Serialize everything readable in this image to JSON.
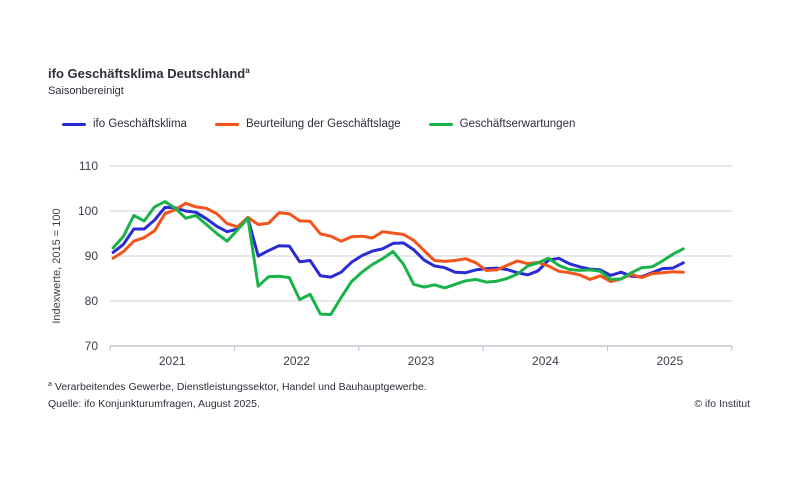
{
  "header": {
    "title": "ifo Geschäftsklima Deutschland",
    "title_superscript": "a",
    "subtitle": "Saisonbereinigt"
  },
  "footer": {
    "footnote_marker": "a",
    "footnote": "Verarbeitendes Gewerbe, Dienstleistungssektor, Handel und Bauhauptgewerbe.",
    "source": "Quelle: ifo Konjunkturumfragen, August 2025.",
    "copyright": "© ifo Institut"
  },
  "chart_data": {
    "type": "line",
    "title": "ifo Geschäftsklima Deutschland",
    "subtitle": "Saisonbereinigt",
    "xlabel": "",
    "ylabel": "Indexwerte, 2015 = 100",
    "ylim": [
      70,
      110
    ],
    "yticks": [
      70,
      80,
      90,
      100,
      110
    ],
    "xticks": [
      "2021",
      "2022",
      "2023",
      "2024",
      "2025"
    ],
    "x_start": "2021-01",
    "x_end": "2025-08",
    "x_range_years": [
      2021,
      2026
    ],
    "grid": true,
    "legend_position": "top-left",
    "x": [
      "2021-01",
      "2021-02",
      "2021-03",
      "2021-04",
      "2021-05",
      "2021-06",
      "2021-07",
      "2021-08",
      "2021-09",
      "2021-10",
      "2021-11",
      "2021-12",
      "2022-01",
      "2022-02",
      "2022-03",
      "2022-04",
      "2022-05",
      "2022-06",
      "2022-07",
      "2022-08",
      "2022-09",
      "2022-10",
      "2022-11",
      "2022-12",
      "2023-01",
      "2023-02",
      "2023-03",
      "2023-04",
      "2023-05",
      "2023-06",
      "2023-07",
      "2023-08",
      "2023-09",
      "2023-10",
      "2023-11",
      "2023-12",
      "2024-01",
      "2024-02",
      "2024-03",
      "2024-04",
      "2024-05",
      "2024-06",
      "2024-07",
      "2024-08",
      "2024-09",
      "2024-10",
      "2024-11",
      "2024-12",
      "2025-01",
      "2025-02",
      "2025-03",
      "2025-04",
      "2025-05",
      "2025-06",
      "2025-07",
      "2025-08"
    ],
    "series": [
      {
        "name": "ifo Geschäftsklima",
        "color": "#2b2bd6",
        "values": [
          90.8,
          92.6,
          96.0,
          96.0,
          98.0,
          100.8,
          100.7,
          100.0,
          99.7,
          98.3,
          96.6,
          95.4,
          96.0,
          98.4,
          90.0,
          91.2,
          92.3,
          92.2,
          88.7,
          89.0,
          85.6,
          85.3,
          86.4,
          88.6,
          90.1,
          91.1,
          91.6,
          92.8,
          92.9,
          91.4,
          89.1,
          87.8,
          87.4,
          86.4,
          86.3,
          86.9,
          87.2,
          87.3,
          87.0,
          86.3,
          85.8,
          86.7,
          89.1,
          89.5,
          88.3,
          87.6,
          87.1,
          86.9,
          85.7,
          86.4,
          85.5,
          85.4,
          86.3,
          87.2,
          87.3,
          88.5
        ]
      },
      {
        "name": "Beurteilung der Geschäftslage",
        "color": "#f2541b",
        "values": [
          89.5,
          91.0,
          93.3,
          94.1,
          95.6,
          99.4,
          100.3,
          101.7,
          100.9,
          100.6,
          99.4,
          97.2,
          96.5,
          98.6,
          97.0,
          97.3,
          99.6,
          99.4,
          97.8,
          97.7,
          94.9,
          94.4,
          93.3,
          94.3,
          94.4,
          94.0,
          95.4,
          95.1,
          94.8,
          93.5,
          91.2,
          89.0,
          88.8,
          89.0,
          89.4,
          88.5,
          86.8,
          86.9,
          87.9,
          88.9,
          88.3,
          88.6,
          87.8,
          86.6,
          86.3,
          85.8,
          84.8,
          85.6,
          84.3,
          84.9,
          85.9,
          85.2,
          86.1,
          86.3,
          86.5,
          86.4
        ]
      },
      {
        "name": "Geschäftserwartungen",
        "color": "#19b34a",
        "values": [
          91.8,
          94.4,
          99.0,
          97.8,
          100.9,
          102.1,
          100.6,
          98.4,
          99.0,
          97.0,
          95.0,
          93.3,
          95.8,
          98.4,
          83.3,
          85.4,
          85.5,
          85.2,
          80.3,
          81.5,
          77.1,
          77.0,
          80.8,
          84.3,
          86.4,
          88.1,
          89.4,
          91.0,
          88.2,
          83.7,
          83.1,
          83.6,
          82.9,
          83.7,
          84.5,
          84.8,
          84.2,
          84.4,
          85.0,
          86.0,
          87.8,
          88.5,
          89.5,
          87.9,
          87.0,
          86.8,
          86.9,
          86.6,
          84.8,
          84.9,
          86.3,
          87.4,
          87.6,
          88.9,
          90.4,
          91.6
        ]
      }
    ]
  }
}
